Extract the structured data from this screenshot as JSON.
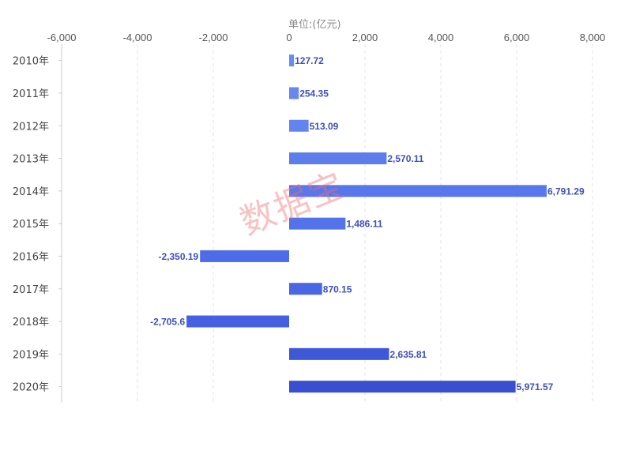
{
  "chart_data": {
    "type": "bar",
    "orientation": "horizontal",
    "unit_label": "单位:(亿元)",
    "xlim": [
      -6000,
      8000
    ],
    "x_ticks": [
      "-6,000",
      "-4,000",
      "-2,000",
      "0",
      "2,000",
      "4,000",
      "6,000",
      "8,000"
    ],
    "x_tick_values": [
      -6000,
      -4000,
      -2000,
      0,
      2000,
      4000,
      6000,
      8000
    ],
    "grid": "vertical-dashed",
    "categories": [
      "2010年",
      "2011年",
      "2012年",
      "2013年",
      "2014年",
      "2015年",
      "2016年",
      "2017年",
      "2018年",
      "2019年",
      "2020年"
    ],
    "values": [
      127.72,
      254.35,
      513.09,
      2570.11,
      6791.29,
      1486.11,
      -2350.19,
      870.15,
      -2705.6,
      2635.81,
      5971.57
    ],
    "value_labels": [
      "127.72",
      "254.35",
      "513.09",
      "2,570.11",
      "6,791.29",
      "1,486.11",
      "-2,350.19",
      "870.15",
      "-2,705.6",
      "2,635.81",
      "5,971.57"
    ],
    "bar_colors": [
      "#6d8af0",
      "#6888ef",
      "#6383ee",
      "#5d7ded",
      "#5877ec",
      "#5472ea",
      "#4f6ce8",
      "#4a66e4",
      "#4560e0",
      "#3f58d8",
      "#3a4fd0"
    ],
    "label_color": "#3d4fc0"
  },
  "watermark": "数据宝"
}
